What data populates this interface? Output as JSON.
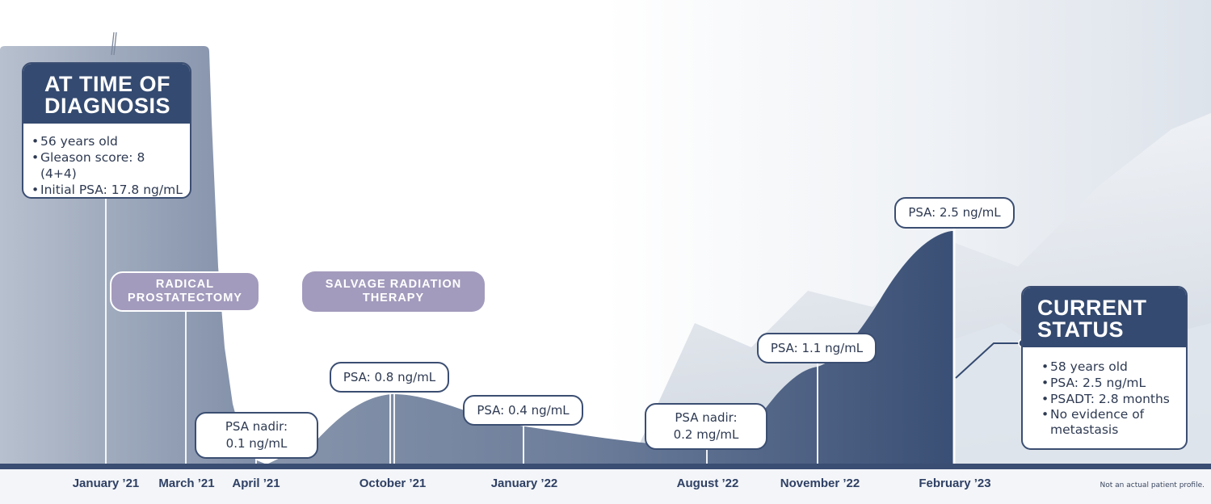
{
  "diagnosis": {
    "title": [
      "AT TIME OF",
      "DIAGNOSIS"
    ],
    "items": [
      "56 years old",
      "Gleason score: 8 (4+4)",
      "Initial PSA: 17.8 ng/mL"
    ]
  },
  "treatments": [
    {
      "lines": [
        "RADICAL",
        "PROSTATECTOMY"
      ]
    },
    {
      "lines": [
        "SALVAGE RADIATION",
        "THERAPY"
      ]
    }
  ],
  "psa_callouts": [
    {
      "lines": [
        "PSA nadir:",
        "0.1 ng/mL"
      ]
    },
    {
      "lines": [
        "PSA: 0.8 ng/mL"
      ]
    },
    {
      "lines": [
        "PSA: 0.4 ng/mL"
      ]
    },
    {
      "lines": [
        "PSA nadir:",
        "0.2 mg/mL"
      ]
    },
    {
      "lines": [
        "PSA: 1.1 ng/mL"
      ]
    },
    {
      "lines": [
        "PSA: 2.5 ng/mL"
      ]
    }
  ],
  "current": {
    "title": [
      "CURRENT",
      "STATUS"
    ],
    "items": [
      "58 years old",
      "PSA: 2.5 ng/mL",
      "PSADT: 2.8 months",
      "No evidence of metastasis"
    ]
  },
  "timeline": [
    "January ’21",
    "March ’21",
    "April ’21",
    "October ’21",
    "January ’22",
    "August ’22",
    "November ’22",
    "February ’23"
  ],
  "footnote": "Not an actual patient profile.",
  "colors": {
    "navy": "#344a70",
    "lavender": "#a39bbd",
    "curve": "#3f5478",
    "axis": "#2f4064"
  }
}
